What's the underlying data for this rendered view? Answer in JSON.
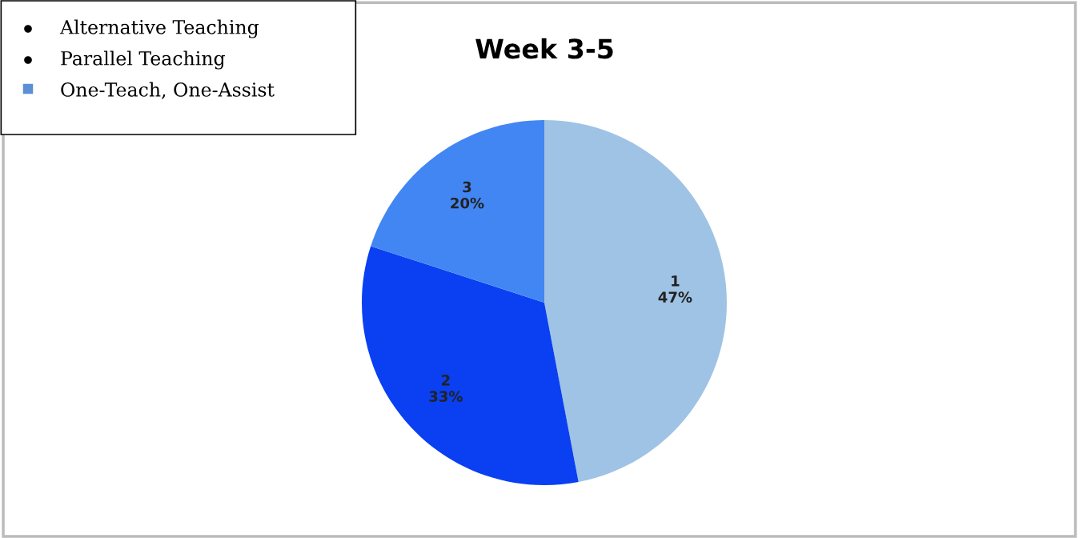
{
  "chart_data": {
    "type": "pie",
    "title": "Week 3-5",
    "categories": [
      "1",
      "2",
      "3"
    ],
    "values": [
      47,
      33,
      20
    ],
    "colors": [
      "#9fc3e4",
      "#0a40f2",
      "#4286f4"
    ],
    "value_labels": [
      "47%",
      "33%",
      "20%"
    ],
    "annotations": [
      "Alternative Teaching",
      "Parallel Teaching",
      "One-Teach, One-Assist"
    ]
  }
}
